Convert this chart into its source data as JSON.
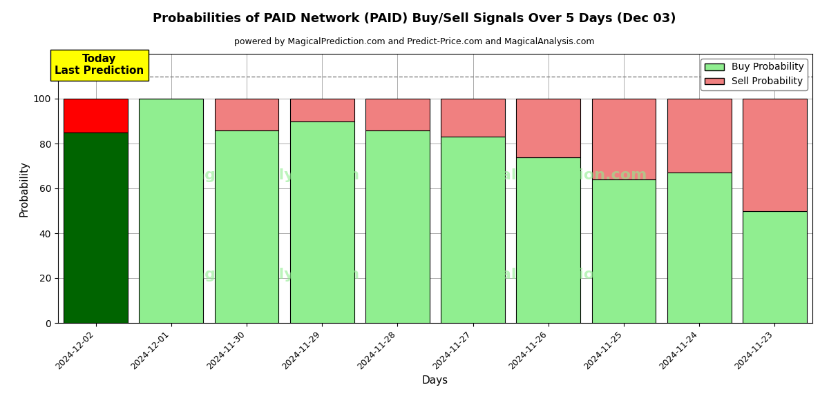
{
  "title": "Probabilities of PAID Network (PAID) Buy/Sell Signals Over 5 Days (Dec 03)",
  "subtitle": "powered by MagicalPrediction.com and Predict-Price.com and MagicalAnalysis.com",
  "xlabel": "Days",
  "ylabel": "Probability",
  "dates": [
    "2024-12-02",
    "2024-12-01",
    "2024-11-30",
    "2024-11-29",
    "2024-11-28",
    "2024-11-27",
    "2024-11-26",
    "2024-11-25",
    "2024-11-24",
    "2024-11-23"
  ],
  "buy_values": [
    85,
    100,
    86,
    90,
    86,
    83,
    74,
    64,
    67,
    50
  ],
  "sell_values": [
    15,
    0,
    14,
    10,
    14,
    17,
    26,
    36,
    33,
    50
  ],
  "today_bar_buy_color": "#006400",
  "today_bar_sell_color": "#FF0000",
  "normal_bar_buy_color": "#90EE90",
  "normal_bar_sell_color": "#F08080",
  "today_annotation_bg": "#FFFF00",
  "today_annotation_text": "Today\nLast Prediction",
  "ylim": [
    0,
    120
  ],
  "dashed_line_y": 110,
  "legend_buy_color": "#90EE90",
  "legend_sell_color": "#F08080",
  "bar_edge_color": "#000000",
  "bar_width": 0.85,
  "grid_color": "#aaaaaa",
  "fig_width": 12,
  "fig_height": 6
}
